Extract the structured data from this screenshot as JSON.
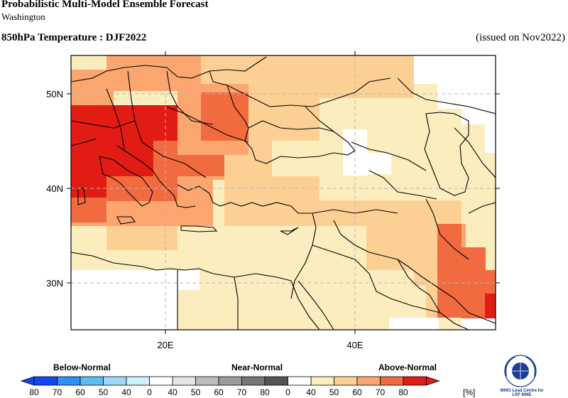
{
  "header": {
    "title": "Probabilistic Multi-Model Ensemble Forecast",
    "subtitle": "Washington",
    "variable": "850hPa Temperature : DJF2022",
    "issued": "(issued on Nov2022)"
  },
  "map": {
    "lat_labels": [
      "50N",
      "40N",
      "30N"
    ],
    "lon_labels": [
      "20E",
      "40E"
    ]
  },
  "legend": {
    "below_label": "Below-Normal",
    "near_label": "Near-Normal",
    "above_label": "Above-Normal",
    "unit": "[%]",
    "below_ticks": [
      "80",
      "70",
      "60",
      "50",
      "40"
    ],
    "near_ticks": [
      "0",
      "40",
      "50",
      "60",
      "70",
      "80"
    ],
    "above_ticks": [
      "0",
      "40",
      "50",
      "60",
      "70",
      "80"
    ],
    "below_colors": [
      "#1447f2",
      "#2e8ff5",
      "#5cbcf6",
      "#9ed8f9",
      "#cdf2fb"
    ],
    "near_colors": [
      "#e5e5e5",
      "#bdbdbd",
      "#9a9a9a",
      "#777777",
      "#545454"
    ],
    "above_colors": [
      "#fbedbd",
      "#fcd095",
      "#fba66f",
      "#f26b40",
      "#e11c14"
    ]
  },
  "logo": {
    "caption_line1": "WMO Lead Centre for",
    "caption_line2": "LRF MME"
  }
}
